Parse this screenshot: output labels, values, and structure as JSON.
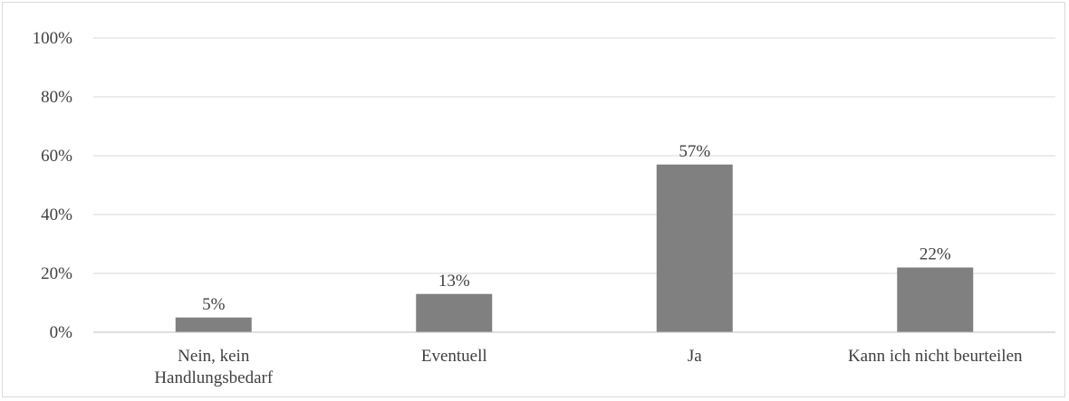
{
  "chart_data": {
    "type": "bar",
    "categories": [
      [
        "Nein, kein",
        "Handlungsbedarf"
      ],
      [
        "Eventuell"
      ],
      [
        "Ja"
      ],
      [
        "Kann ich nicht beurteilen"
      ]
    ],
    "values": [
      5,
      13,
      57,
      22
    ],
    "data_labels": [
      "5%",
      "13%",
      "57%",
      "22%"
    ],
    "y_ticks": [
      0,
      20,
      40,
      60,
      80,
      100
    ],
    "y_tick_labels": [
      "0%",
      "20%",
      "40%",
      "60%",
      "80%",
      "100%"
    ],
    "ylim": [
      0,
      100
    ],
    "title": "",
    "xlabel": "",
    "ylabel": "",
    "grid": true,
    "legend": "none",
    "bar_color": "#808080"
  }
}
